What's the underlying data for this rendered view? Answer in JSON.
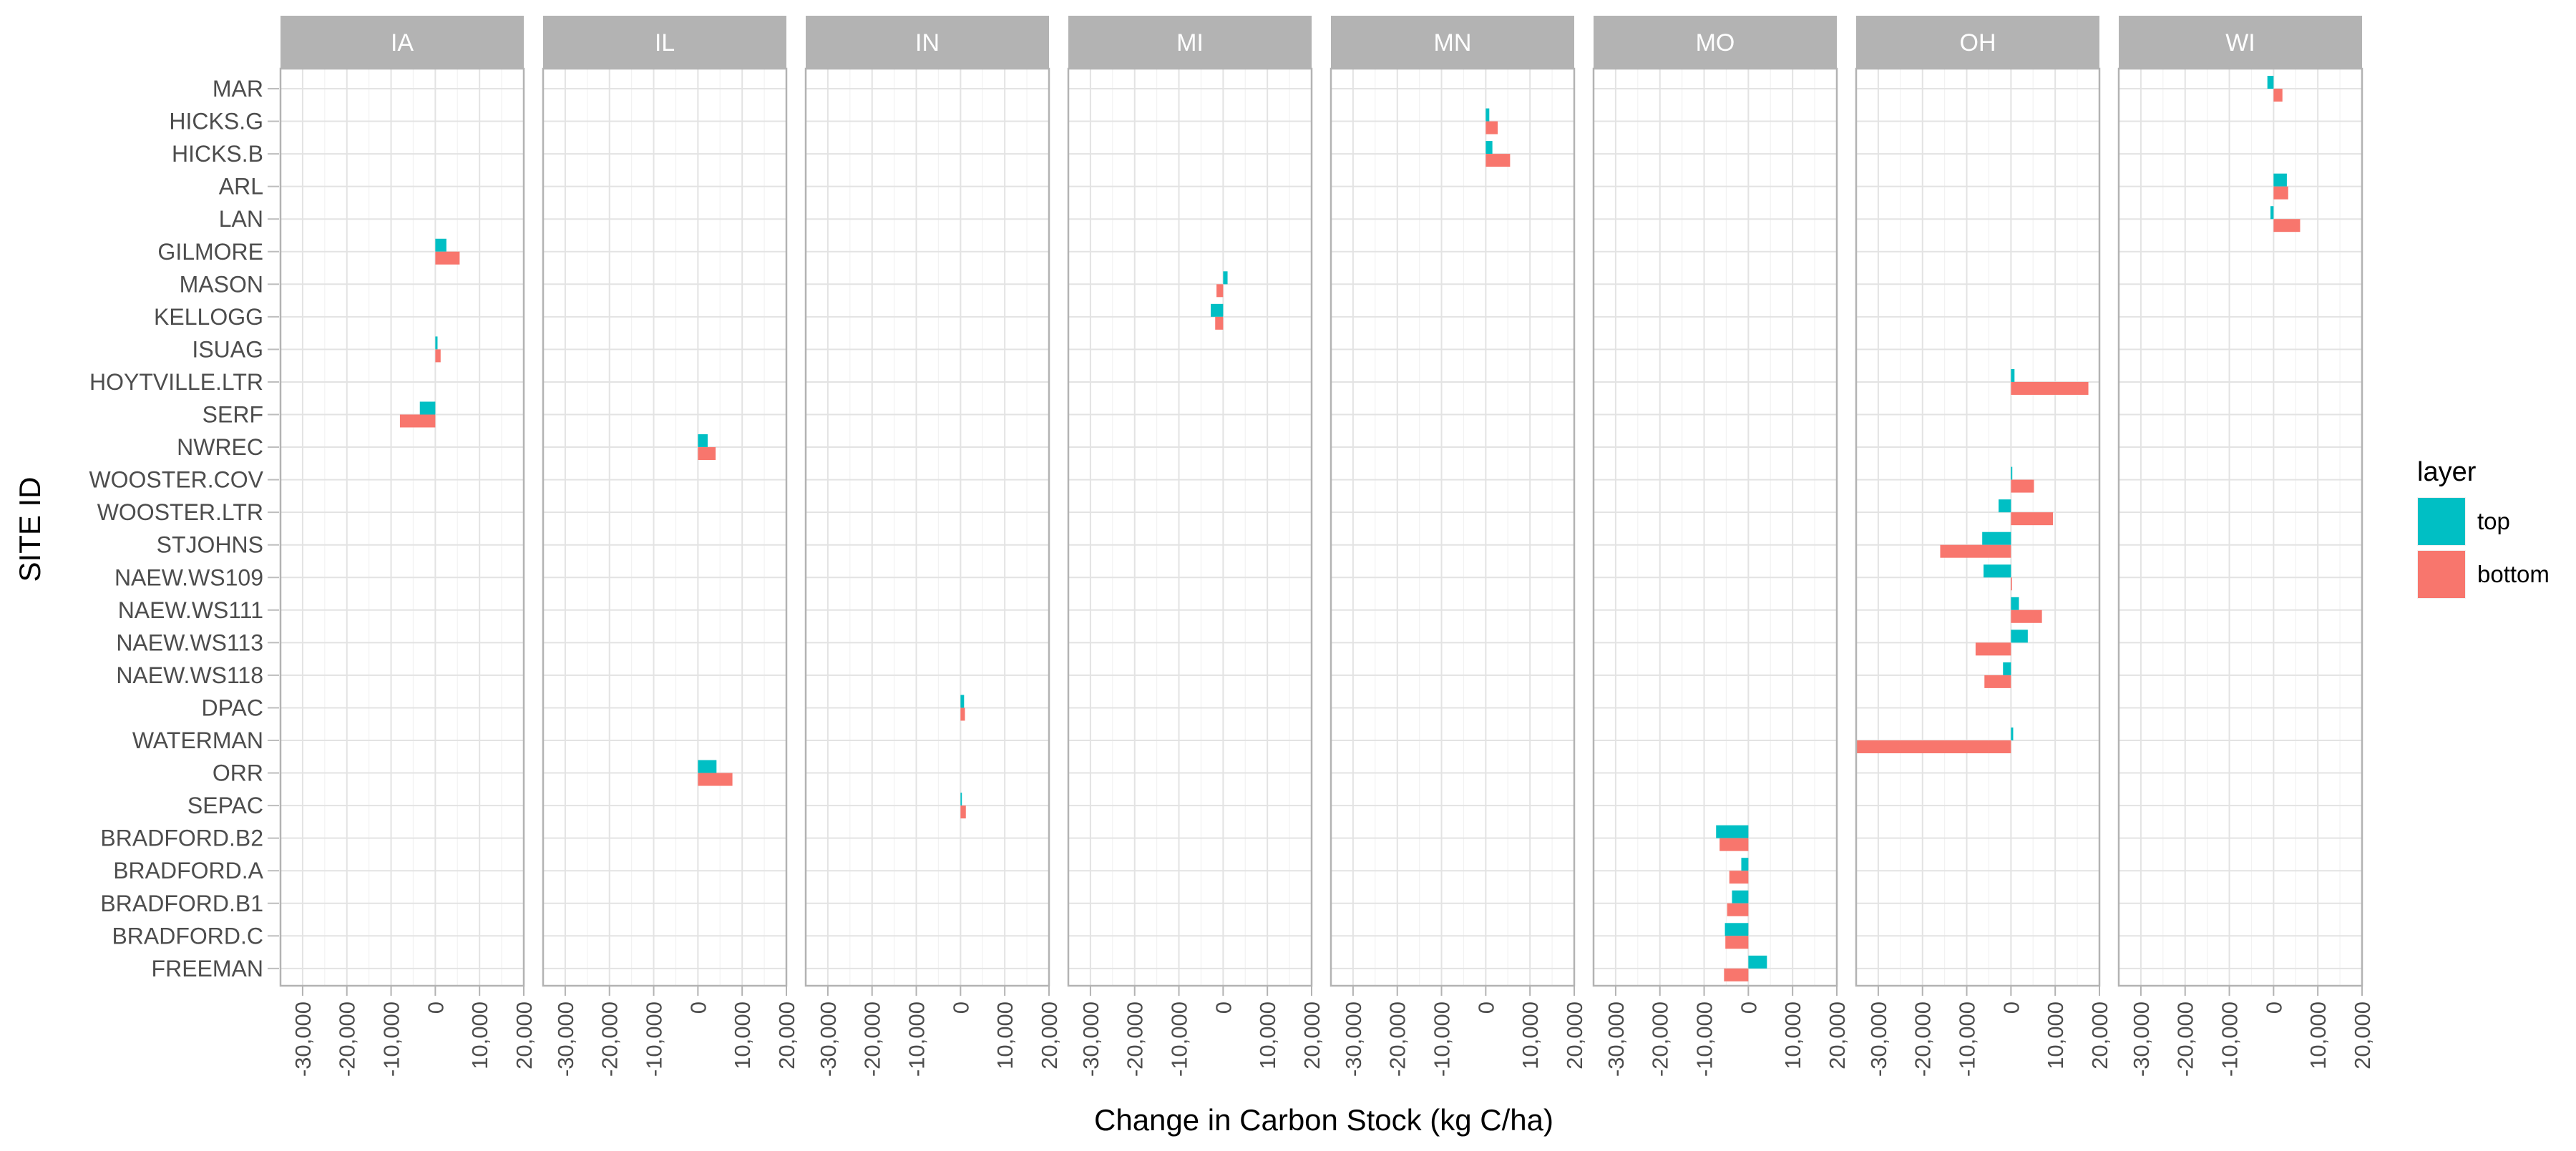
{
  "chart_data": {
    "type": "bar",
    "orientation": "horizontal",
    "grouping": "overlap",
    "xlabel": "Change in Carbon Stock (kg C/ha)",
    "ylabel": "SITE ID",
    "xlim": [
      -35000,
      20000
    ],
    "xticks": [
      -30000,
      -20000,
      -10000,
      0,
      10000,
      20000
    ],
    "xtick_labels": [
      "-30,000",
      "-20,000",
      "-10,000",
      "0",
      "10,000",
      "20,000"
    ],
    "grid": true,
    "legend_position": "right",
    "legend_title": "layer",
    "sites": [
      "MAR",
      "HICKS.G",
      "HICKS.B",
      "ARL",
      "LAN",
      "GILMORE",
      "MASON",
      "KELLOGG",
      "ISUAG",
      "HOYTVILLE.LTR",
      "SERF",
      "NWREC",
      "WOOSTER.COV",
      "WOOSTER.LTR",
      "STJOHNS",
      "NAEW.WS109",
      "NAEW.WS111",
      "NAEW.WS113",
      "NAEW.WS118",
      "DPAC",
      "WATERMAN",
      "ORR",
      "SEPAC",
      "BRADFORD.B2",
      "BRADFORD.A",
      "BRADFORD.B1",
      "BRADFORD.C",
      "FREEMAN"
    ],
    "series": [
      {
        "name": "top",
        "color": "#00BFC4"
      },
      {
        "name": "bottom",
        "color": "#F8766D"
      }
    ],
    "panels": [
      {
        "state": "IA",
        "bars": [
          {
            "site": "GILMORE",
            "top": 2500,
            "bottom": 5500
          },
          {
            "site": "ISUAG",
            "top": 500,
            "bottom": 1200
          },
          {
            "site": "SERF",
            "top": -3500,
            "bottom": -8000
          }
        ]
      },
      {
        "state": "IL",
        "bars": [
          {
            "site": "NWREC",
            "top": 2200,
            "bottom": 4000
          },
          {
            "site": "ORR",
            "top": 4200,
            "bottom": 7800
          }
        ]
      },
      {
        "state": "IN",
        "bars": [
          {
            "site": "DPAC",
            "top": 800,
            "bottom": 1000
          },
          {
            "site": "SEPAC",
            "top": 300,
            "bottom": 1200
          }
        ]
      },
      {
        "state": "MI",
        "bars": [
          {
            "site": "MASON",
            "top": 1000,
            "bottom": -1500
          },
          {
            "site": "KELLOGG",
            "top": -2800,
            "bottom": -1800
          }
        ]
      },
      {
        "state": "MN",
        "bars": [
          {
            "site": "HICKS.G",
            "top": 800,
            "bottom": 2700
          },
          {
            "site": "HICKS.B",
            "top": 1500,
            "bottom": 5500
          }
        ]
      },
      {
        "state": "MO",
        "bars": [
          {
            "site": "BRADFORD.B2",
            "top": -7300,
            "bottom": -6500
          },
          {
            "site": "BRADFORD.A",
            "top": -1600,
            "bottom": -4300
          },
          {
            "site": "BRADFORD.B1",
            "top": -3700,
            "bottom": -4800
          },
          {
            "site": "BRADFORD.C",
            "top": -5300,
            "bottom": -5200
          },
          {
            "site": "FREEMAN",
            "top": 4200,
            "bottom": -5500
          }
        ]
      },
      {
        "state": "OH",
        "bars": [
          {
            "site": "HOYTVILLE.LTR",
            "top": 800,
            "bottom": 17500
          },
          {
            "site": "WOOSTER.COV",
            "top": 300,
            "bottom": 5200
          },
          {
            "site": "WOOSTER.LTR",
            "top": -2800,
            "bottom": 9500
          },
          {
            "site": "STJOHNS",
            "top": -6500,
            "bottom": -16000
          },
          {
            "site": "NAEW.WS109",
            "top": -6200,
            "bottom": 0
          },
          {
            "site": "NAEW.WS111",
            "top": 1800,
            "bottom": 7000
          },
          {
            "site": "NAEW.WS113",
            "top": 3800,
            "bottom": -8000
          },
          {
            "site": "NAEW.WS118",
            "top": -1800,
            "bottom": -6000
          },
          {
            "site": "WATERMAN",
            "top": 500,
            "bottom": -35000
          }
        ]
      },
      {
        "state": "WI",
        "bars": [
          {
            "site": "MAR",
            "top": -1400,
            "bottom": 2000
          },
          {
            "site": "ARL",
            "top": 3000,
            "bottom": 3300
          },
          {
            "site": "LAN",
            "top": -700,
            "bottom": 6000
          }
        ]
      }
    ]
  }
}
